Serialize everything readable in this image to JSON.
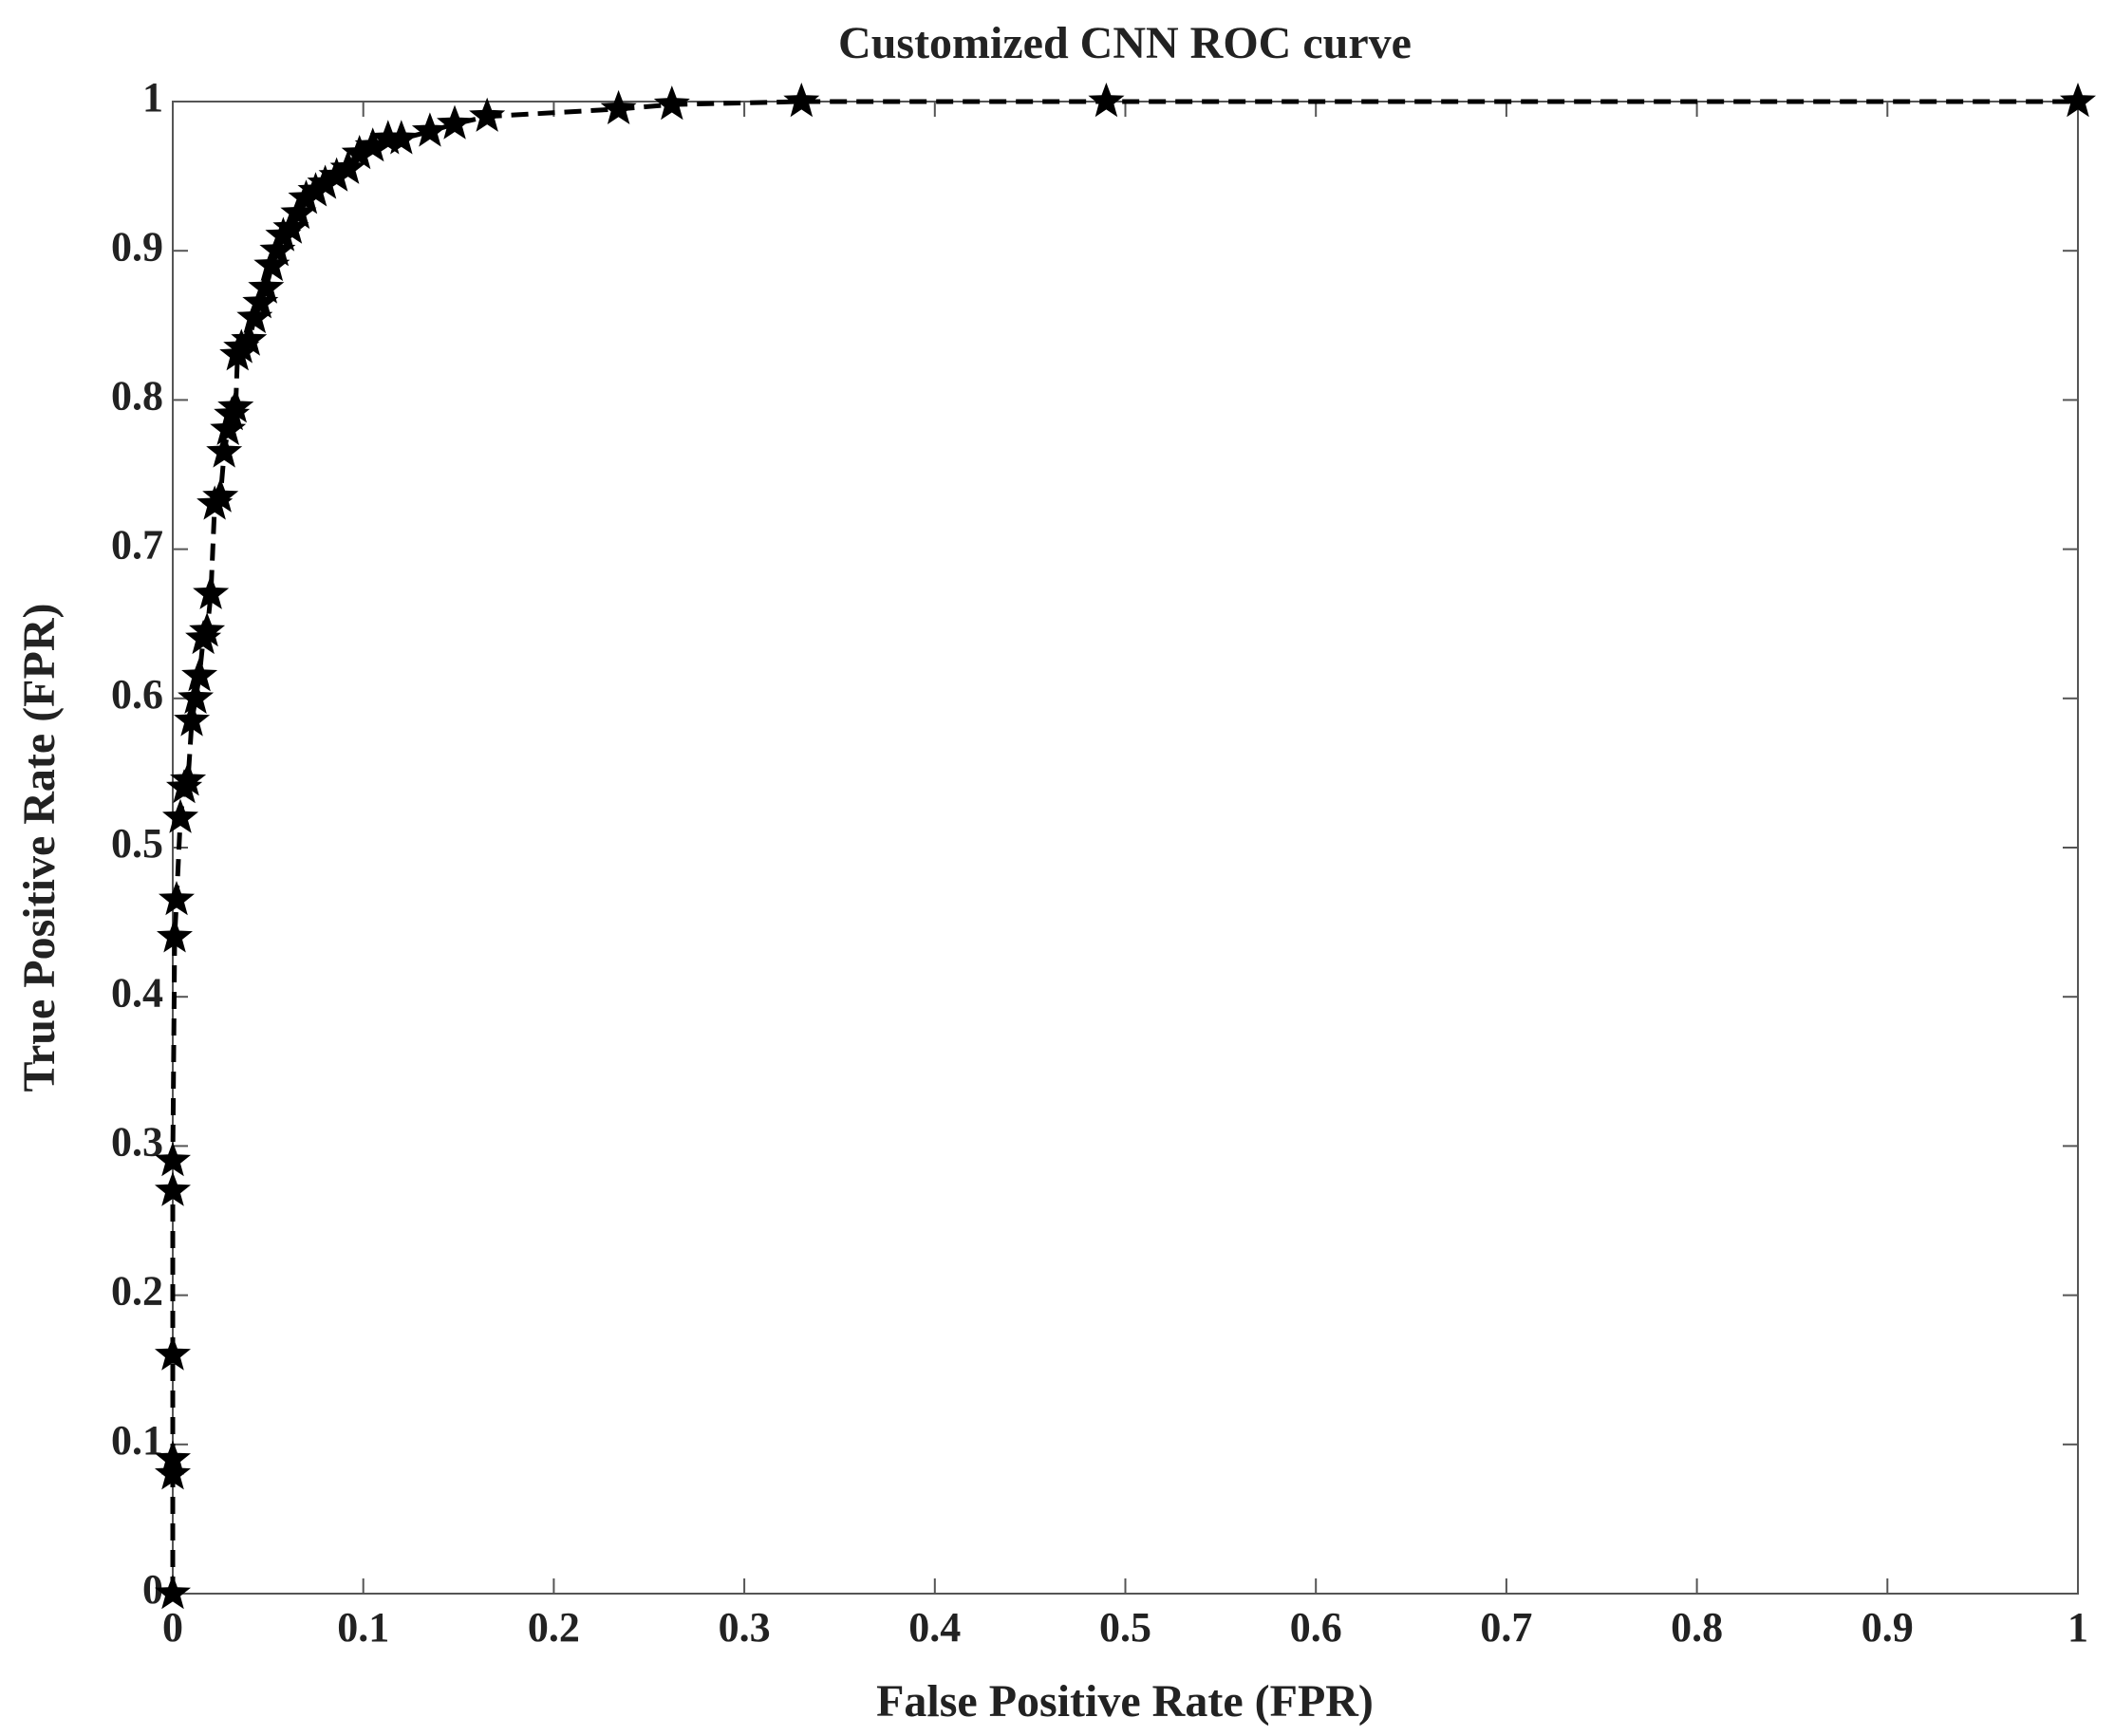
{
  "chart_data": {
    "type": "line",
    "title": "Customized CNN ROC curve",
    "x_label": "False Positive Rate (FPR)",
    "y_label": "True Positive Rate (FPR)",
    "x": [
      0,
      0,
      0,
      0,
      0,
      0,
      0.001,
      0.002,
      0.004,
      0.006,
      0.008,
      0.01,
      0.012,
      0.014,
      0.016,
      0.018,
      0.02,
      0.022,
      0.025,
      0.027,
      0.029,
      0.031,
      0.033,
      0.034,
      0.036,
      0.04,
      0.043,
      0.046,
      0.049,
      0.052,
      0.055,
      0.058,
      0.062,
      0.066,
      0.07,
      0.075,
      0.08,
      0.086,
      0.092,
      0.098,
      0.105,
      0.113,
      0.12,
      0.135,
      0.148,
      0.165,
      0.234,
      0.262,
      0.33,
      0.49,
      1
    ],
    "values": [
      0,
      0.08,
      0.09,
      0.16,
      0.27,
      0.29,
      0.44,
      0.465,
      0.52,
      0.54,
      0.545,
      0.585,
      0.6,
      0.615,
      0.64,
      0.645,
      0.67,
      0.73,
      0.735,
      0.765,
      0.78,
      0.79,
      0.795,
      0.83,
      0.835,
      0.84,
      0.855,
      0.865,
      0.875,
      0.89,
      0.9,
      0.91,
      0.915,
      0.925,
      0.935,
      0.94,
      0.945,
      0.95,
      0.955,
      0.965,
      0.97,
      0.975,
      0.975,
      0.98,
      0.985,
      0.99,
      0.995,
      0.998,
      1,
      1,
      1
    ],
    "color": "#000000",
    "line_style": "dashed",
    "marker": "star",
    "xlim": [
      0,
      1
    ],
    "ylim": [
      0,
      1
    ],
    "xticks": [
      0,
      0.1,
      0.2,
      0.3,
      0.4,
      0.5,
      0.6,
      0.7,
      0.8,
      0.9,
      1
    ],
    "yticks": [
      0,
      0.1,
      0.2,
      0.3,
      0.4,
      0.5,
      0.6,
      0.7,
      0.8,
      0.9,
      1
    ],
    "grid": false
  }
}
